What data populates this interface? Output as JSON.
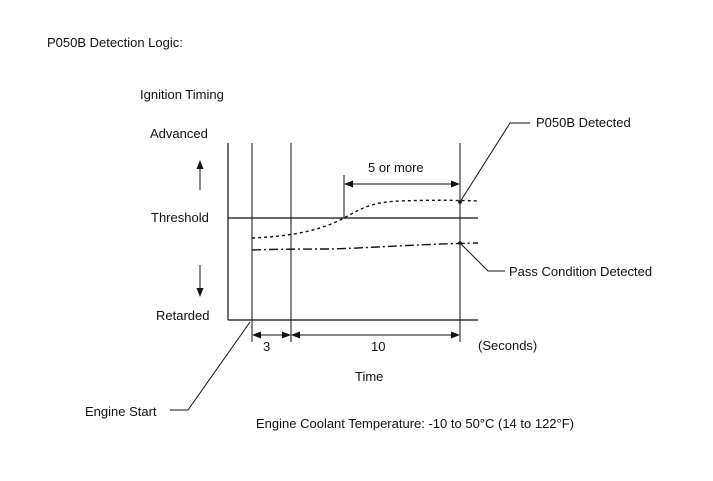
{
  "title": "P050B Detection Logic:",
  "axis": {
    "y_title": "Ignition Timing",
    "advanced": "Advanced",
    "threshold": "Threshold",
    "retarded": "Retarded",
    "x_title": "Time",
    "units": "(Seconds)"
  },
  "intervals": {
    "first": "3",
    "second": "10",
    "duration": "5 or more"
  },
  "callouts": {
    "detected": "P050B Detected",
    "pass": "Pass Condition Detected",
    "engine_start": "Engine Start"
  },
  "condition": "Engine Coolant Temperature: -10 to 50°C (14 to 122°F)"
}
